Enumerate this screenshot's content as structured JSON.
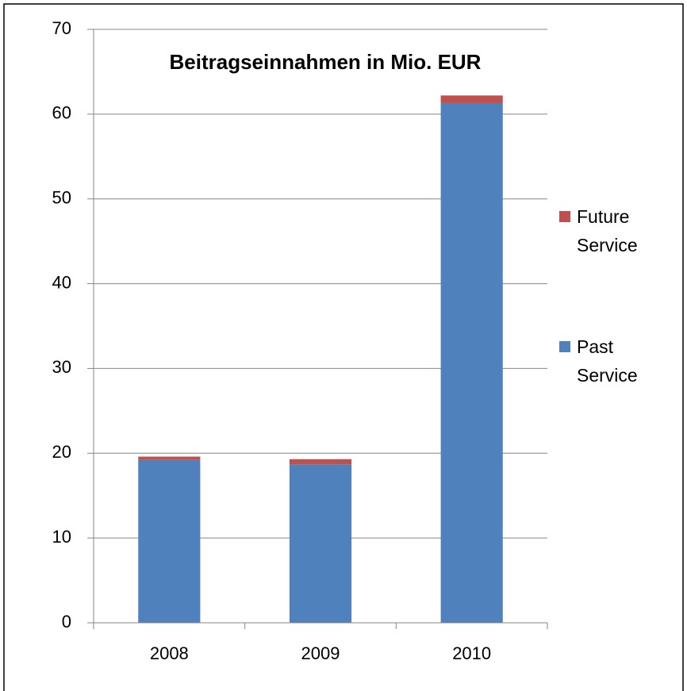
{
  "chart_data": {
    "type": "stacked_bar",
    "title": "Beitragseinnahmen in Mio. EUR",
    "categories": [
      "2008",
      "2009",
      "2010"
    ],
    "series": [
      {
        "name": "Past Service",
        "color": "#4f81bd",
        "values": [
          19.2,
          18.7,
          61.3
        ]
      },
      {
        "name": "Future Service",
        "color": "#c0504d",
        "values": [
          0.4,
          0.6,
          0.9
        ]
      }
    ],
    "ylim": [
      0,
      70
    ],
    "yticks": [
      0,
      10,
      20,
      30,
      40,
      50,
      60,
      70
    ],
    "grid": true,
    "legend": "right"
  }
}
